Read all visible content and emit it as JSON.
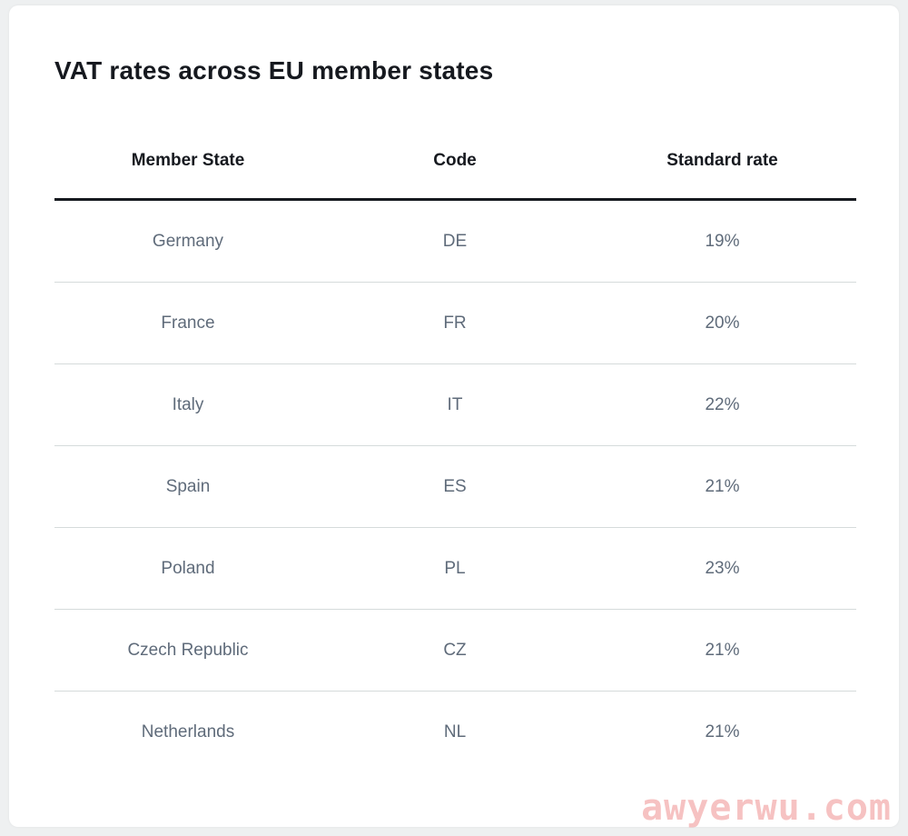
{
  "title": "VAT rates across EU member states",
  "table": {
    "headers": [
      "Member State",
      "Code",
      "Standard rate"
    ],
    "rows": [
      [
        "Germany",
        "DE",
        "19%"
      ],
      [
        "France",
        "FR",
        "20%"
      ],
      [
        "Italy",
        "IT",
        "22%"
      ],
      [
        "Spain",
        "ES",
        "21%"
      ],
      [
        "Poland",
        "PL",
        "23%"
      ],
      [
        "Czech Republic",
        "CZ",
        "21%"
      ],
      [
        "Netherlands",
        "NL",
        "21%"
      ]
    ]
  },
  "watermark": "awyerwu.com"
}
